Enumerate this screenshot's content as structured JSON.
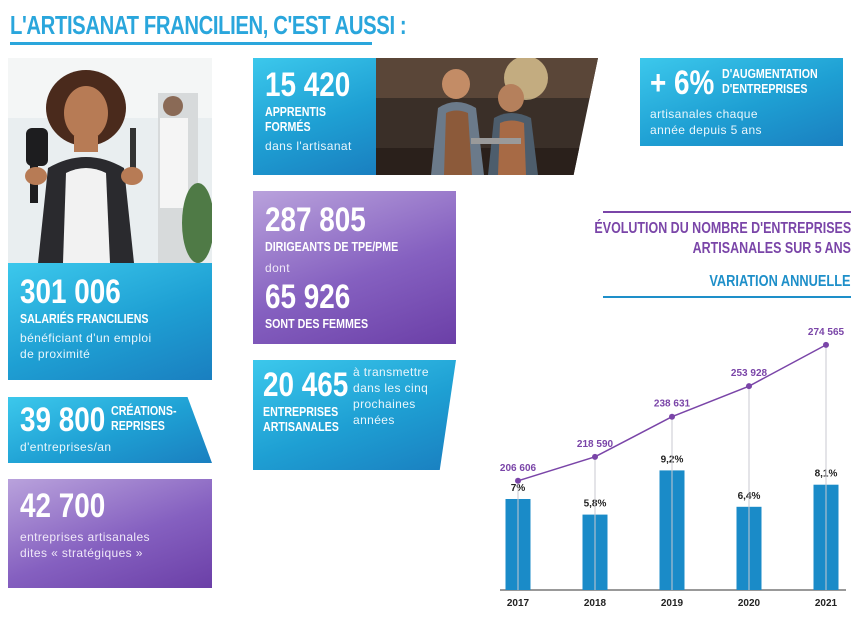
{
  "title": "L'ARTISANAT FRANCILIEN, C'EST AUSSI :",
  "stats": {
    "salaries": {
      "value": "301 006",
      "caption": "SALARIÉS FRANCILIENS",
      "line1": "bénéficiant d'un emploi",
      "line2": "de proximité"
    },
    "creations": {
      "value": "39 800",
      "caption1": "CRÉATIONS-",
      "caption2": "REPRISES",
      "line1": "d'entreprises/an"
    },
    "strategiques": {
      "value": "42 700",
      "line1": "entreprises artisanales",
      "line2": "dites « stratégiques »"
    },
    "apprentis": {
      "value": "15 420",
      "caption1": "APPRENTIS",
      "caption2": "FORMÉS",
      "line1": "dans l'artisanat"
    },
    "dirigeants": {
      "value": "287 805",
      "caption": "DIRIGEANTS DE TPE/PME",
      "dont": "dont",
      "value2": "65 926",
      "caption2": "SONT DES FEMMES"
    },
    "transmettre": {
      "value": "20 465",
      "caption1": "ENTREPRISES",
      "caption2": "ARTISANALES",
      "line1": "à transmettre",
      "line2": "dans les cinq",
      "line3": "prochaines",
      "line4": "années"
    },
    "augmentation": {
      "value": "+ 6%",
      "caption1": "D'AUGMENTATION",
      "caption2": "D'ENTREPRISES",
      "line1": "artisanales chaque",
      "line2": "année depuis 5 ans"
    }
  },
  "chart_title_line1": "ÉVOLUTION DU NOMBRE D'ENTREPRISES",
  "chart_title_line2": "ARTISANALES SUR 5 ANS",
  "variation_title": "VARIATION ANNUELLE",
  "colors": {
    "blue": "#1e9fd3",
    "purple": "#7a45a8",
    "bar": "#1a8bc8"
  },
  "chart_data": {
    "type": "bar",
    "categories": [
      "2017",
      "2018",
      "2019",
      "2020",
      "2021"
    ],
    "series": [
      {
        "values": [
          7,
          5.8,
          9.2,
          6.4,
          8.1
        ],
        "labels": [
          "7%",
          "5,8%",
          "9,2%",
          "6,4%",
          "8,1%"
        ]
      },
      {
        "type": "line",
        "values": [
          206606,
          218590,
          238631,
          253928,
          274565
        ],
        "labels": [
          "206 606",
          "218 590",
          "238 631",
          "253 928",
          "274 565"
        ]
      }
    ]
  }
}
